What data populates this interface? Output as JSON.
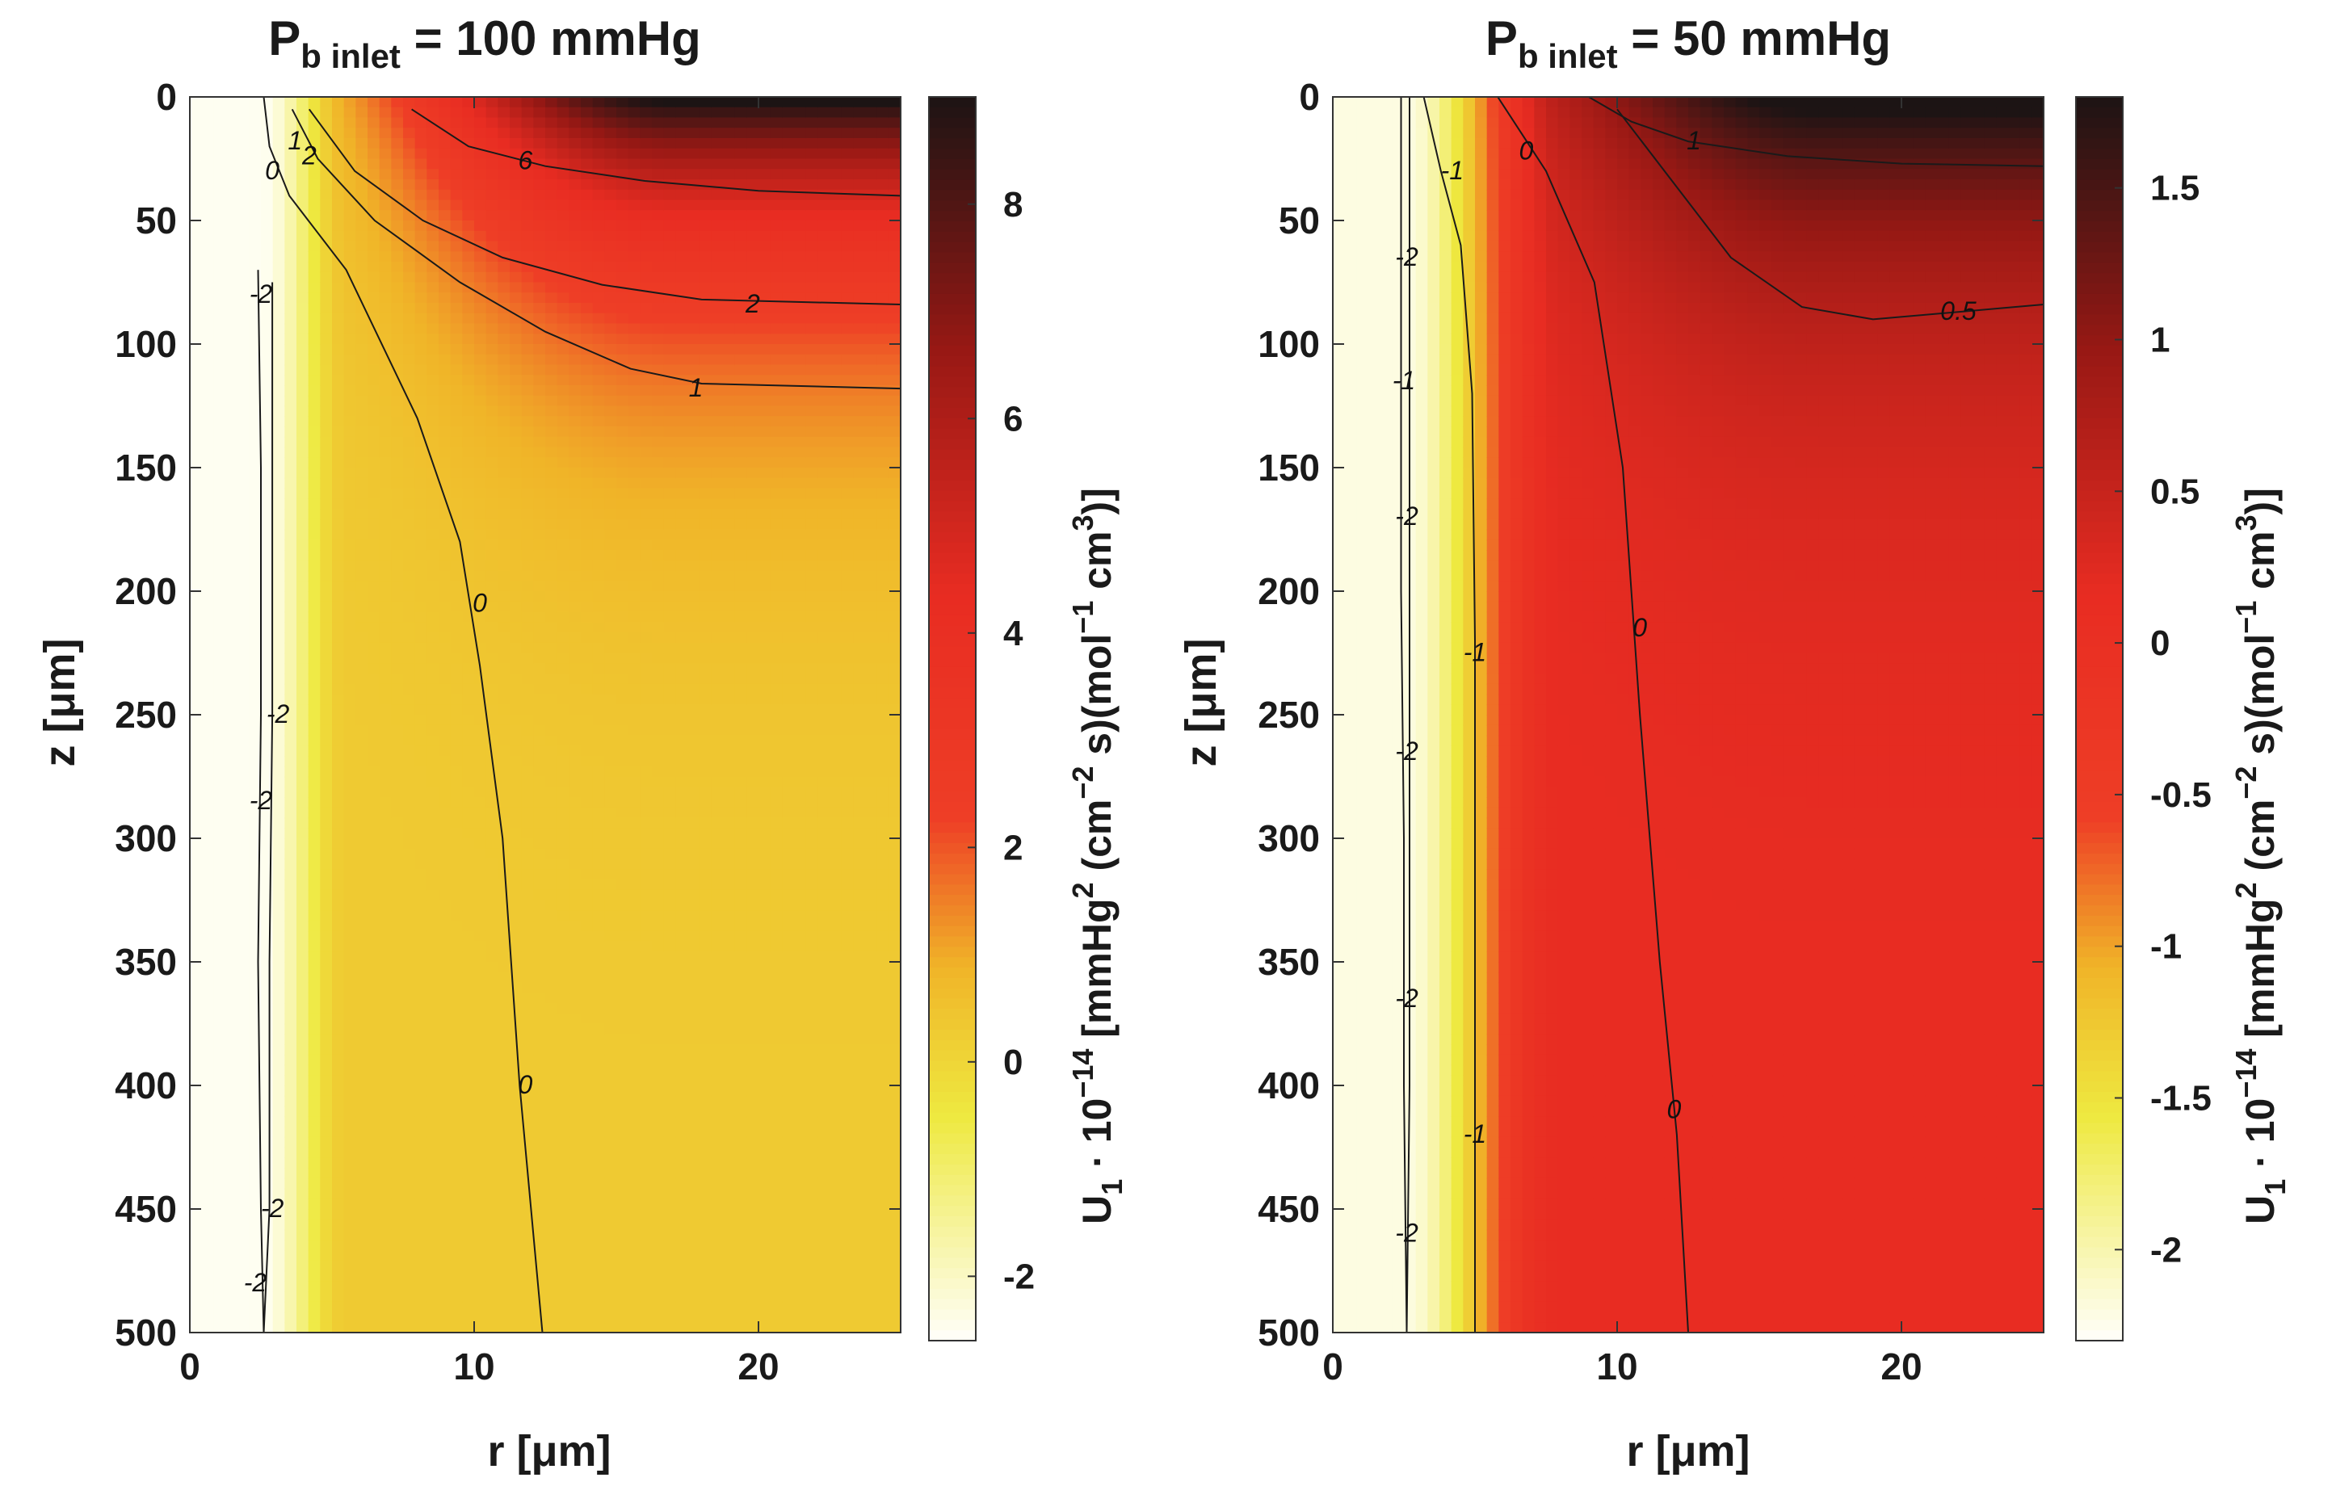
{
  "chart_data": [
    {
      "type": "heatmap",
      "title_prefix": "P",
      "title_sub": "b inlet",
      "title_rest": " = 100 mmHg",
      "xlabel": "r [μm]",
      "ylabel": "z [μm]",
      "xlim": [
        0,
        25
      ],
      "ylim": [
        500,
        0
      ],
      "x_ticks": [
        0,
        10,
        20
      ],
      "y_ticks": [
        0,
        50,
        100,
        150,
        200,
        250,
        300,
        350,
        400,
        450,
        500
      ],
      "colorbar": {
        "label": "U1 · 10^-14 [mmHg2 (cm−2 s)(mol−1 cm3)]",
        "label_main": "U",
        "label_sub1": "1",
        "label_mid": " · 10",
        "label_exp1": "−14",
        "label_bracket": " [mmHg",
        "label_exp2": "2",
        "label_paren1": " (cm",
        "label_exp3": "−2",
        "label_paren2": " s)(mol",
        "label_exp4": "−1",
        "label_cm": " cm",
        "label_exp5": "3",
        "label_end": ")]",
        "range": [
          -2.6,
          9.0
        ],
        "ticks": [
          -2,
          0,
          2,
          4,
          6,
          8
        ],
        "tick_labels": [
          "-2",
          "0",
          "2",
          "4",
          "6",
          "8"
        ]
      },
      "field": {
        "base_far": 0.3,
        "near_wall_value": -2.5,
        "wall_transition_r": [
          2.5,
          5.5
        ],
        "top_peak": 9.0,
        "top_decay_z": 60
      },
      "contours": [
        {
          "level": "-2",
          "points": [
            [
              2.4,
              70
            ],
            [
              2.5,
              150
            ],
            [
              2.5,
              250
            ],
            [
              2.4,
              350
            ],
            [
              2.5,
              450
            ],
            [
              2.6,
              500
            ]
          ]
        },
        {
          "level": "-2",
          "points": [
            [
              2.9,
              75
            ],
            [
              2.9,
              150
            ],
            [
              2.9,
              250
            ],
            [
              2.8,
              350
            ],
            [
              2.8,
              450
            ],
            [
              2.6,
              500
            ]
          ]
        },
        {
          "level": "0",
          "points": [
            [
              2.6,
              0
            ],
            [
              2.8,
              20
            ],
            [
              3.5,
              40
            ],
            [
              5.5,
              70
            ],
            [
              8,
              130
            ],
            [
              9.5,
              180
            ],
            [
              10.2,
              230
            ],
            [
              11,
              300
            ],
            [
              11.6,
              400
            ],
            [
              12.4,
              500
            ]
          ]
        },
        {
          "level": "1",
          "points": [
            [
              3.6,
              5
            ],
            [
              4.5,
              25
            ],
            [
              6.5,
              50
            ],
            [
              9.5,
              75
            ],
            [
              12.5,
              95
            ],
            [
              15.5,
              110
            ],
            [
              18,
              116
            ],
            [
              25,
              118
            ]
          ]
        },
        {
          "level": "2",
          "points": [
            [
              4.2,
              5
            ],
            [
              5.8,
              30
            ],
            [
              8.2,
              50
            ],
            [
              11,
              65
            ],
            [
              14.5,
              76
            ],
            [
              18,
              82
            ],
            [
              25,
              84
            ]
          ]
        },
        {
          "level": "6",
          "points": [
            [
              7.8,
              5
            ],
            [
              9.8,
              20
            ],
            [
              12.5,
              28
            ],
            [
              16,
              34
            ],
            [
              20,
              38
            ],
            [
              25,
              40
            ]
          ]
        }
      ],
      "contour_labels": [
        {
          "text": "6",
          "r": 11.8,
          "z": 26
        },
        {
          "text": "2",
          "r": 19.8,
          "z": 84
        },
        {
          "text": "1",
          "r": 17.8,
          "z": 118
        },
        {
          "text": "0",
          "r": 10.2,
          "z": 205
        },
        {
          "text": "0",
          "r": 11.8,
          "z": 400
        },
        {
          "text": "1",
          "r": 3.7,
          "z": 18
        },
        {
          "text": "2",
          "r": 4.2,
          "z": 24
        },
        {
          "text": "0",
          "r": 2.9,
          "z": 30
        },
        {
          "text": "-2",
          "r": 2.5,
          "z": 80
        },
        {
          "text": "-2",
          "r": 3.1,
          "z": 250
        },
        {
          "text": "-2",
          "r": 2.5,
          "z": 285
        },
        {
          "text": "-2",
          "r": 2.9,
          "z": 450
        },
        {
          "text": "-2",
          "r": 2.3,
          "z": 480
        }
      ]
    },
    {
      "type": "heatmap",
      "title_prefix": "P",
      "title_sub": "b inlet",
      "title_rest": " = 50 mmHg",
      "xlabel": "r [μm]",
      "ylabel": "z [μm]",
      "xlim": [
        0,
        25
      ],
      "ylim": [
        500,
        0
      ],
      "x_ticks": [
        0,
        10,
        20
      ],
      "y_ticks": [
        0,
        50,
        100,
        150,
        200,
        250,
        300,
        350,
        400,
        450,
        500
      ],
      "colorbar": {
        "label": "U1 · 10^-14 [mmHg2 (cm−2 s)(mol−1 cm3)]",
        "label_main": "U",
        "label_sub1": "1",
        "label_mid": " · 10",
        "label_exp1": "−14",
        "label_bracket": " [mmHg",
        "label_exp2": "2",
        "label_paren1": " (cm",
        "label_exp3": "−2",
        "label_paren2": " s)(mol",
        "label_exp4": "−1",
        "label_cm": " cm",
        "label_exp5": "3",
        "label_end": ")]",
        "range": [
          -2.3,
          1.8
        ],
        "ticks": [
          -2,
          -1.5,
          -1,
          -0.5,
          0,
          0.5,
          1,
          1.5
        ],
        "tick_labels": [
          "-2",
          "-1.5",
          "-1",
          "-0.5",
          "0",
          "0.5",
          "1",
          "1.5"
        ]
      },
      "field": {
        "base_far": 0.15,
        "near_wall_value": -2.2,
        "wall_transition_r": [
          2.5,
          8.0
        ],
        "top_peak": 1.8,
        "top_decay_z": 70
      },
      "contours": [
        {
          "level": "-2",
          "points": [
            [
              2.4,
              0
            ],
            [
              2.4,
              100
            ],
            [
              2.4,
              200
            ],
            [
              2.5,
              300
            ],
            [
              2.5,
              400
            ],
            [
              2.6,
              500
            ]
          ]
        },
        {
          "level": "-2",
          "points": [
            [
              2.7,
              0
            ],
            [
              2.7,
              100
            ],
            [
              2.7,
              200
            ],
            [
              2.7,
              300
            ],
            [
              2.7,
              400
            ],
            [
              2.6,
              500
            ]
          ]
        },
        {
          "level": "-1",
          "points": [
            [
              3.2,
              0
            ],
            [
              3.8,
              30
            ],
            [
              4.5,
              60
            ],
            [
              4.9,
              120
            ],
            [
              5,
              220
            ],
            [
              5,
              350
            ],
            [
              5,
              500
            ]
          ]
        },
        {
          "level": "0",
          "points": [
            [
              5.8,
              0
            ],
            [
              7.5,
              30
            ],
            [
              9.2,
              75
            ],
            [
              10.2,
              150
            ],
            [
              10.8,
              250
            ],
            [
              11.5,
              350
            ],
            [
              12.1,
              420
            ],
            [
              12.5,
              500
            ]
          ]
        },
        {
          "level": "0.5",
          "points": [
            [
              10,
              5
            ],
            [
              12,
              35
            ],
            [
              14,
              65
            ],
            [
              16.5,
              85
            ],
            [
              19,
              90
            ],
            [
              22,
              87
            ],
            [
              25,
              84
            ]
          ]
        },
        {
          "level": "1",
          "points": [
            [
              9,
              0
            ],
            [
              10.5,
              10
            ],
            [
              12.5,
              18
            ],
            [
              16,
              24
            ],
            [
              20,
              27
            ],
            [
              25,
              28
            ]
          ]
        }
      ],
      "contour_labels": [
        {
          "text": "1",
          "r": 12.7,
          "z": 18
        },
        {
          "text": "0.5",
          "r": 22.0,
          "z": 87
        },
        {
          "text": "0",
          "r": 6.8,
          "z": 22
        },
        {
          "text": "0",
          "r": 10.8,
          "z": 215
        },
        {
          "text": "0",
          "r": 12.0,
          "z": 410
        },
        {
          "text": "-1",
          "r": 4.2,
          "z": 30
        },
        {
          "text": "-1",
          "r": 5.0,
          "z": 225
        },
        {
          "text": "-1",
          "r": 5.0,
          "z": 420
        },
        {
          "text": "-2",
          "r": 2.6,
          "z": 65
        },
        {
          "text": "-1",
          "r": 2.5,
          "z": 115
        },
        {
          "text": "-2",
          "r": 2.6,
          "z": 170
        },
        {
          "text": "-2",
          "r": 2.6,
          "z": 265
        },
        {
          "text": "-2",
          "r": 2.6,
          "z": 365
        },
        {
          "text": "-2",
          "r": 2.6,
          "z": 460
        }
      ]
    }
  ]
}
